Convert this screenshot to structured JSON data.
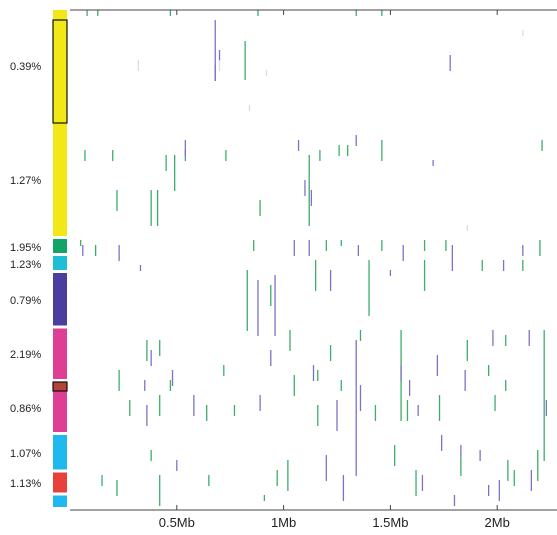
{
  "chart_data": {
    "type": "scatter",
    "title": "",
    "xlabel": "",
    "ylabel": "",
    "x_unit": "Mb",
    "xlim": [
      0,
      2.28
    ],
    "x_ticks": [
      {
        "value": 0.5,
        "label": "0.5Mb"
      },
      {
        "value": 1.0,
        "label": "1Mb"
      },
      {
        "value": 1.5,
        "label": "1.5Mb"
      },
      {
        "value": 2.0,
        "label": "2Mb"
      }
    ],
    "groups": [
      {
        "label": "0.39%",
        "color": "#f2e817",
        "y_start": 0.0,
        "y_end": 0.226
      },
      {
        "label": "1.27%",
        "color": "#f2e817",
        "y_start": 0.226,
        "y_end": 0.458
      },
      {
        "label": "1.95%",
        "color": "#12a567",
        "y_start": 0.458,
        "y_end": 0.492
      },
      {
        "label": "1.23%",
        "color": "#1ebfd6",
        "y_start": 0.492,
        "y_end": 0.526
      },
      {
        "label": "0.79%",
        "color": "#4b3e9e",
        "y_start": 0.526,
        "y_end": 0.637
      },
      {
        "label": "2.19%",
        "color": "#df3e95",
        "y_start": 0.637,
        "y_end": 0.744
      },
      {
        "label": "0.86%",
        "color": "#df3e95",
        "y_start": 0.744,
        "y_end": 0.85
      },
      {
        "label": "1.07%",
        "color": "#1fb9ee",
        "y_start": 0.85,
        "y_end": 0.925
      },
      {
        "label": "1.13%",
        "color": "#e8403a",
        "y_start": 0.925,
        "y_end": 0.971
      },
      {
        "label": "",
        "color": "#1fb9ee",
        "y_start": 0.971,
        "y_end": 1.0
      }
    ],
    "highlighted_rows": [
      {
        "y_start": 0.02,
        "y_end": 0.226,
        "color": "#f2e817"
      },
      {
        "y_start": 0.744,
        "y_end": 0.762,
        "color": "#b5433a"
      }
    ],
    "series": [
      {
        "color": "#3cae6a",
        "points": [
          [
            0.08,
            0.0,
            0.01
          ],
          [
            0.13,
            0.0,
            0.01
          ],
          [
            0.47,
            0.0,
            0.01
          ],
          [
            0.88,
            0.0,
            0.01
          ],
          [
            1.34,
            0.0,
            0.01
          ],
          [
            1.46,
            0.0,
            0.01
          ],
          [
            0.82,
            0.14,
            0.06
          ],
          [
            0.07,
            0.28,
            0.3
          ],
          [
            0.2,
            0.28,
            0.3
          ],
          [
            0.45,
            0.29,
            0.32
          ],
          [
            0.49,
            0.29,
            0.36
          ],
          [
            0.54,
            0.28,
            0.3
          ],
          [
            0.73,
            0.28,
            0.3
          ],
          [
            1.12,
            0.29,
            0.43
          ],
          [
            1.17,
            0.28,
            0.3
          ],
          [
            1.26,
            0.27,
            0.29
          ],
          [
            1.3,
            0.27,
            0.29
          ],
          [
            1.46,
            0.26,
            0.3
          ],
          [
            2.21,
            0.26,
            0.28
          ],
          [
            0.22,
            0.36,
            0.4
          ],
          [
            0.38,
            0.36,
            0.43
          ],
          [
            0.41,
            0.36,
            0.43
          ],
          [
            0.89,
            0.38,
            0.41
          ],
          [
            0.05,
            0.46,
            0.47
          ],
          [
            0.12,
            0.47,
            0.49
          ],
          [
            0.86,
            0.46,
            0.48
          ],
          [
            1.2,
            0.46,
            0.48
          ],
          [
            1.27,
            0.46,
            0.47
          ],
          [
            1.46,
            0.46,
            0.48
          ],
          [
            1.66,
            0.46,
            0.48
          ],
          [
            1.76,
            0.46,
            0.48
          ],
          [
            2.2,
            0.46,
            0.49
          ],
          [
            0.83,
            0.52,
            0.64
          ],
          [
            1.15,
            0.5,
            0.56
          ],
          [
            1.4,
            0.5,
            0.61
          ],
          [
            1.66,
            0.5,
            0.56
          ],
          [
            1.93,
            0.5,
            0.52
          ],
          [
            2.12,
            0.5,
            0.52
          ],
          [
            0.94,
            0.55,
            0.59
          ],
          [
            0.36,
            0.66,
            0.7
          ],
          [
            0.42,
            0.66,
            0.69
          ],
          [
            1.03,
            0.64,
            0.68
          ],
          [
            1.22,
            0.67,
            0.7
          ],
          [
            1.36,
            0.64,
            0.66
          ],
          [
            1.55,
            0.64,
            0.82
          ],
          [
            1.86,
            0.66,
            0.7
          ],
          [
            2.04,
            0.65,
            0.67
          ],
          [
            2.22,
            0.64,
            0.9
          ],
          [
            0.23,
            0.72,
            0.76
          ],
          [
            0.47,
            0.74,
            0.76
          ],
          [
            0.72,
            0.71,
            0.73
          ],
          [
            1.05,
            0.73,
            0.77
          ],
          [
            1.16,
            0.72,
            0.74
          ],
          [
            1.27,
            0.74,
            0.76
          ],
          [
            1.96,
            0.71,
            0.73
          ],
          [
            2.04,
            0.74,
            0.76
          ],
          [
            0.28,
            0.78,
            0.81
          ],
          [
            0.42,
            0.77,
            0.81
          ],
          [
            0.64,
            0.79,
            0.82
          ],
          [
            0.77,
            0.79,
            0.81
          ],
          [
            1.16,
            0.79,
            0.83
          ],
          [
            1.43,
            0.79,
            0.82
          ],
          [
            1.58,
            0.78,
            0.82
          ],
          [
            1.73,
            0.77,
            0.82
          ],
          [
            1.99,
            0.77,
            0.8
          ],
          [
            0.38,
            0.88,
            0.9
          ],
          [
            1.02,
            0.9,
            0.96
          ],
          [
            1.52,
            0.87,
            0.91
          ],
          [
            2.05,
            0.9,
            0.94
          ],
          [
            2.19,
            0.88,
            0.94
          ],
          [
            0.15,
            0.93,
            0.95
          ],
          [
            0.22,
            0.94,
            0.97
          ],
          [
            0.42,
            0.93,
            0.99
          ],
          [
            0.65,
            0.93,
            0.95
          ],
          [
            0.97,
            0.92,
            0.95
          ],
          [
            1.62,
            0.92,
            0.97
          ],
          [
            1.83,
            0.89,
            0.93
          ],
          [
            2.08,
            0.92,
            0.95
          ],
          [
            0.91,
            0.97,
            0.98
          ]
        ]
      },
      {
        "color": "#7c73c8",
        "points": [
          [
            0.68,
            0.02,
            0.14
          ],
          [
            0.7,
            0.08,
            0.1
          ],
          [
            1.78,
            0.09,
            0.12
          ],
          [
            0.68,
            0.11,
            0.14
          ],
          [
            0.54,
            0.26,
            0.29
          ],
          [
            1.07,
            0.26,
            0.28
          ],
          [
            1.34,
            0.25,
            0.27
          ],
          [
            1.7,
            0.3,
            0.31
          ],
          [
            1.1,
            0.34,
            0.37
          ],
          [
            1.13,
            0.36,
            0.39
          ],
          [
            0.23,
            0.47,
            0.5
          ],
          [
            0.06,
            0.47,
            0.49
          ],
          [
            1.05,
            0.46,
            0.49
          ],
          [
            1.12,
            0.46,
            0.49
          ],
          [
            1.35,
            0.47,
            0.49
          ],
          [
            1.56,
            0.47,
            0.5
          ],
          [
            1.79,
            0.47,
            0.5
          ],
          [
            2.12,
            0.47,
            0.49
          ],
          [
            0.33,
            0.51,
            0.52
          ],
          [
            1.5,
            0.52,
            0.53
          ],
          [
            1.79,
            0.5,
            0.52
          ],
          [
            2.03,
            0.5,
            0.52
          ],
          [
            0.88,
            0.54,
            0.65
          ],
          [
            0.96,
            0.53,
            0.65
          ],
          [
            1.22,
            0.52,
            0.56
          ],
          [
            0.38,
            0.68,
            0.71
          ],
          [
            0.94,
            0.68,
            0.71
          ],
          [
            1.34,
            0.66,
            0.93
          ],
          [
            1.55,
            0.71,
            0.74
          ],
          [
            1.72,
            0.69,
            0.73
          ],
          [
            1.98,
            0.64,
            0.67
          ],
          [
            2.15,
            0.64,
            0.67
          ],
          [
            0.48,
            0.72,
            0.75
          ],
          [
            1.14,
            0.71,
            0.74
          ],
          [
            1.85,
            0.72,
            0.76
          ],
          [
            1.36,
            0.75,
            0.8
          ],
          [
            0.35,
            0.74,
            0.76
          ],
          [
            1.59,
            0.74,
            0.77
          ],
          [
            0.58,
            0.77,
            0.81
          ],
          [
            0.89,
            0.77,
            0.8
          ],
          [
            0.36,
            0.79,
            0.83
          ],
          [
            1.25,
            0.78,
            0.84
          ],
          [
            1.63,
            0.79,
            0.81
          ],
          [
            2.23,
            0.78,
            0.81
          ],
          [
            1.74,
            0.85,
            0.88
          ],
          [
            1.83,
            0.87,
            0.89
          ],
          [
            0.5,
            0.9,
            0.92
          ],
          [
            1.2,
            0.89,
            0.94
          ],
          [
            1.92,
            0.88,
            0.9
          ],
          [
            1.65,
            0.93,
            0.96
          ],
          [
            1.96,
            0.95,
            0.97
          ],
          [
            2.01,
            0.94,
            0.98
          ],
          [
            2.16,
            0.92,
            0.96
          ],
          [
            1.28,
            0.93,
            0.98
          ],
          [
            1.8,
            0.97,
            0.99
          ]
        ]
      },
      {
        "color": "#dddddd",
        "points": [
          [
            0.32,
            0.1,
            0.12
          ],
          [
            0.7,
            0.1,
            0.12
          ],
          [
            0.92,
            0.12,
            0.13
          ],
          [
            0.84,
            0.19,
            0.2
          ],
          [
            2.12,
            0.04,
            0.05
          ],
          [
            1.86,
            0.43,
            0.44
          ]
        ]
      }
    ]
  }
}
